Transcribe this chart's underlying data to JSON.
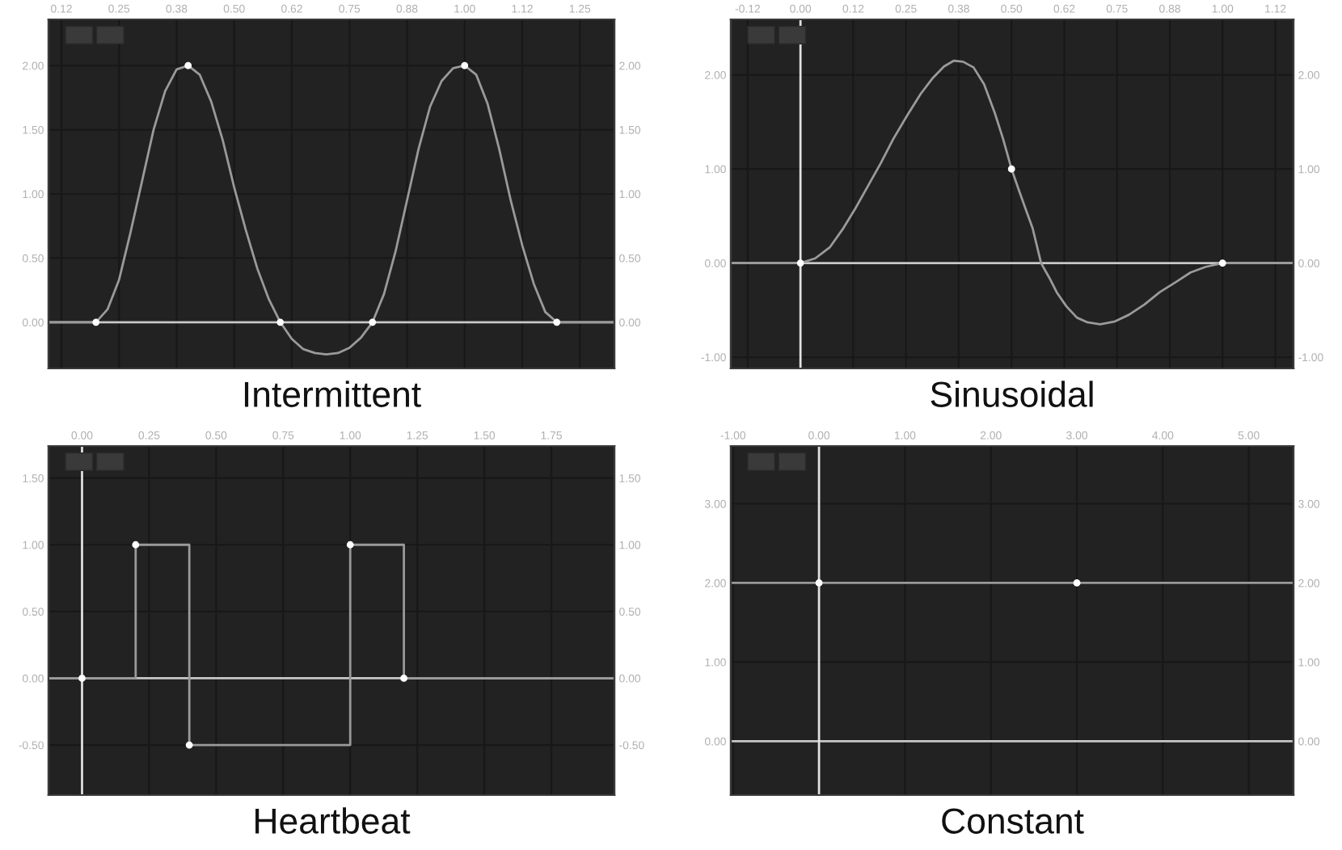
{
  "chart_data": [
    {
      "type": "line",
      "title": "Intermittent",
      "grid": true,
      "xlim": [
        0.097,
        1.325
      ],
      "ylim": [
        -0.36,
        2.36
      ],
      "y2lim": [
        -0.36,
        2.36
      ],
      "xticks": [
        {
          "value": 0.125,
          "label": "0.12"
        },
        {
          "value": 0.25,
          "label": "0.25"
        },
        {
          "value": 0.375,
          "label": "0.38"
        },
        {
          "value": 0.5,
          "label": "0.50"
        },
        {
          "value": 0.625,
          "label": "0.62"
        },
        {
          "value": 0.75,
          "label": "0.75"
        },
        {
          "value": 0.875,
          "label": "0.88"
        },
        {
          "value": 1.0,
          "label": "1.00"
        },
        {
          "value": 1.125,
          "label": "1.12"
        },
        {
          "value": 1.25,
          "label": "1.25"
        }
      ],
      "yticks": [
        {
          "value": 0,
          "label": "0.00"
        },
        {
          "value": 0.5,
          "label": "0.50"
        },
        {
          "value": 1,
          "label": "1.00"
        },
        {
          "value": 1.5,
          "label": "1.50"
        },
        {
          "value": 2,
          "label": "2.00"
        }
      ],
      "y2ticks": [
        {
          "value": 0,
          "label": "0.00"
        },
        {
          "value": 0.5,
          "label": "0.50"
        },
        {
          "value": 1,
          "label": "1.00"
        },
        {
          "value": 1.5,
          "label": "1.50"
        },
        {
          "value": 2,
          "label": "2.00"
        }
      ],
      "ref_lines": [
        {
          "axis": "y",
          "value": 0,
          "color": "#c8c8c8"
        }
      ],
      "series": [
        {
          "color": "#9a9a9a",
          "x": [
            0.097,
            0.2,
            0.225,
            0.25,
            0.275,
            0.3,
            0.325,
            0.35,
            0.375,
            0.4,
            0.425,
            0.45,
            0.475,
            0.5,
            0.525,
            0.55,
            0.575,
            0.6,
            0.625,
            0.65,
            0.675,
            0.7,
            0.725,
            0.75,
            0.775,
            0.8,
            0.825,
            0.85,
            0.875,
            0.9,
            0.925,
            0.95,
            0.975,
            1.0,
            1.025,
            1.05,
            1.075,
            1.1,
            1.125,
            1.15,
            1.175,
            1.2,
            1.325
          ],
          "values": [
            0,
            0,
            0.1,
            0.33,
            0.7,
            1.1,
            1.5,
            1.8,
            1.97,
            2,
            1.93,
            1.72,
            1.42,
            1.05,
            0.72,
            0.42,
            0.18,
            0,
            -0.13,
            -0.21,
            -0.24,
            -0.25,
            -0.24,
            -0.2,
            -0.12,
            0,
            0.22,
            0.55,
            0.95,
            1.35,
            1.68,
            1.88,
            1.98,
            2,
            1.93,
            1.7,
            1.35,
            0.95,
            0.6,
            0.3,
            0.08,
            0,
            0
          ]
        },
        {
          "type": "scatter",
          "marker": "circle",
          "color": "#ffffff",
          "x": [
            0.2,
            0.4,
            0.6,
            0.8,
            1.0,
            1.2
          ],
          "values": [
            0,
            2,
            0,
            0,
            2,
            0
          ]
        }
      ]
    },
    {
      "type": "line",
      "title": "Sinusoidal",
      "grid": true,
      "xlim": [
        -0.165,
        1.168
      ],
      "ylim": [
        -1.12,
        2.59
      ],
      "y2lim": [
        -1.12,
        2.59
      ],
      "xticks": [
        {
          "value": -0.125,
          "label": "-0.12"
        },
        {
          "value": 0,
          "label": "0.00"
        },
        {
          "value": 0.125,
          "label": "0.12"
        },
        {
          "value": 0.25,
          "label": "0.25"
        },
        {
          "value": 0.375,
          "label": "0.38"
        },
        {
          "value": 0.5,
          "label": "0.50"
        },
        {
          "value": 0.625,
          "label": "0.62"
        },
        {
          "value": 0.75,
          "label": "0.75"
        },
        {
          "value": 0.875,
          "label": "0.88"
        },
        {
          "value": 1.0,
          "label": "1.00"
        },
        {
          "value": 1.125,
          "label": "1.12"
        }
      ],
      "yticks": [
        {
          "value": -1,
          "label": "-1.00"
        },
        {
          "value": 0,
          "label": "0.00"
        },
        {
          "value": 1,
          "label": "1.00"
        },
        {
          "value": 2,
          "label": "2.00"
        }
      ],
      "y2ticks": [
        {
          "value": -1,
          "label": "-1.00"
        },
        {
          "value": 0,
          "label": "0.00"
        },
        {
          "value": 1,
          "label": "1.00"
        },
        {
          "value": 2,
          "label": "2.00"
        }
      ],
      "ref_lines": [
        {
          "axis": "y",
          "value": 0,
          "color": "#c8c8c8"
        },
        {
          "axis": "x",
          "value": 0,
          "color": "#e0e0e0"
        }
      ],
      "series": [
        {
          "color": "#9a9a9a",
          "x": [
            -0.165,
            0,
            0.035,
            0.07,
            0.1,
            0.13,
            0.16,
            0.19,
            0.22,
            0.253,
            0.285,
            0.314,
            0.34,
            0.363,
            0.385,
            0.41,
            0.435,
            0.46,
            0.48,
            0.5,
            0.517,
            0.533,
            0.55,
            0.57,
            0.59,
            0.607,
            0.63,
            0.655,
            0.68,
            0.71,
            0.745,
            0.778,
            0.815,
            0.851,
            0.89,
            0.924,
            0.96,
            1.0,
            1.168
          ],
          "values": [
            0,
            0,
            0.05,
            0.17,
            0.36,
            0.58,
            0.82,
            1.06,
            1.32,
            1.57,
            1.8,
            1.97,
            2.09,
            2.15,
            2.14,
            2.08,
            1.9,
            1.6,
            1.32,
            1.0,
            0.78,
            0.58,
            0.37,
            0.0,
            -0.16,
            -0.31,
            -0.46,
            -0.58,
            -0.63,
            -0.65,
            -0.62,
            -0.55,
            -0.44,
            -0.31,
            -0.2,
            -0.1,
            -0.04,
            0,
            0
          ]
        },
        {
          "type": "scatter",
          "marker": "circle",
          "color": "#ffffff",
          "x": [
            0,
            0.5,
            1.0
          ],
          "values": [
            0,
            1,
            0
          ]
        }
      ]
    },
    {
      "type": "step",
      "title": "Heartbeat",
      "grid": true,
      "xlim": [
        -0.125,
        1.985
      ],
      "ylim": [
        -0.875,
        1.74
      ],
      "y2lim": [
        -0.875,
        1.74
      ],
      "xticks": [
        {
          "value": 0,
          "label": "0.00"
        },
        {
          "value": 0.25,
          "label": "0.25"
        },
        {
          "value": 0.5,
          "label": "0.50"
        },
        {
          "value": 0.75,
          "label": "0.75"
        },
        {
          "value": 1.0,
          "label": "1.00"
        },
        {
          "value": 1.25,
          "label": "1.25"
        },
        {
          "value": 1.5,
          "label": "1.50"
        },
        {
          "value": 1.75,
          "label": "1.75"
        }
      ],
      "yticks": [
        {
          "value": -0.5,
          "label": "-0.50"
        },
        {
          "value": 0,
          "label": "0.00"
        },
        {
          "value": 0.5,
          "label": "0.50"
        },
        {
          "value": 1,
          "label": "1.00"
        },
        {
          "value": 1.5,
          "label": "1.50"
        }
      ],
      "y2ticks": [
        {
          "value": -0.5,
          "label": "-0.50"
        },
        {
          "value": 0,
          "label": "0.00"
        },
        {
          "value": 0.5,
          "label": "0.50"
        },
        {
          "value": 1,
          "label": "1.00"
        },
        {
          "value": 1.5,
          "label": "1.50"
        }
      ],
      "ref_lines": [
        {
          "axis": "y",
          "value": 0,
          "color": "#c8c8c8"
        },
        {
          "axis": "x",
          "value": 0,
          "color": "#e0e0e0"
        }
      ],
      "series": [
        {
          "color": "#9a9a9a",
          "x": [
            -0.125,
            0,
            0.2,
            0.4,
            1.0,
            1.2,
            1.985
          ],
          "values": [
            0,
            0,
            1,
            -0.5,
            1,
            0,
            0
          ]
        },
        {
          "type": "scatter",
          "marker": "circle",
          "color": "#ffffff",
          "x": [
            0,
            0.2,
            0.4,
            1.0,
            1.2
          ],
          "values": [
            0,
            1,
            -0.5,
            1,
            0
          ]
        }
      ]
    },
    {
      "type": "line",
      "title": "Constant",
      "grid": true,
      "xlim": [
        -1.026,
        5.52
      ],
      "ylim": [
        -0.68,
        3.73
      ],
      "y2lim": [
        -0.68,
        3.73
      ],
      "xticks": [
        {
          "value": -1,
          "label": "-1.00"
        },
        {
          "value": 0,
          "label": "0.00"
        },
        {
          "value": 1,
          "label": "1.00"
        },
        {
          "value": 2,
          "label": "2.00"
        },
        {
          "value": 3,
          "label": "3.00"
        },
        {
          "value": 4,
          "label": "4.00"
        },
        {
          "value": 5,
          "label": "5.00"
        }
      ],
      "yticks": [
        {
          "value": 0,
          "label": "0.00"
        },
        {
          "value": 1,
          "label": "1.00"
        },
        {
          "value": 2,
          "label": "2.00"
        },
        {
          "value": 3,
          "label": "3.00"
        }
      ],
      "y2ticks": [
        {
          "value": 0,
          "label": "0.00"
        },
        {
          "value": 1,
          "label": "1.00"
        },
        {
          "value": 2,
          "label": "2.00"
        },
        {
          "value": 3,
          "label": "3.00"
        }
      ],
      "ref_lines": [
        {
          "axis": "y",
          "value": 0,
          "color": "#c8c8c8"
        },
        {
          "axis": "x",
          "value": 0,
          "color": "#e0e0e0"
        }
      ],
      "series": [
        {
          "color": "#9a9a9a",
          "x": [
            -1.026,
            0,
            3,
            5.52
          ],
          "values": [
            2,
            2,
            2,
            2
          ]
        },
        {
          "type": "scatter",
          "marker": "circle",
          "color": "#ffffff",
          "x": [
            0,
            3
          ],
          "values": [
            2,
            2
          ]
        }
      ]
    }
  ]
}
